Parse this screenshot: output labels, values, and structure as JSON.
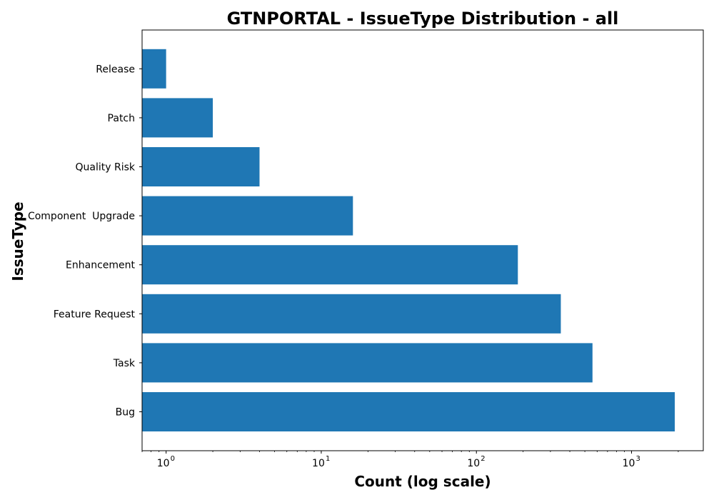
{
  "chart_data": {
    "type": "bar",
    "orientation": "horizontal",
    "title": "GTNPORTAL - IssueType Distribution - all",
    "xlabel": "Count (log scale)",
    "ylabel": "IssueType",
    "xscale": "log",
    "xlim": [
      0.7,
      2900
    ],
    "x_ticks": [
      1,
      10,
      100,
      1000
    ],
    "x_tick_labels": [
      {
        "base": "10",
        "exp": "0"
      },
      {
        "base": "10",
        "exp": "1"
      },
      {
        "base": "10",
        "exp": "2"
      },
      {
        "base": "10",
        "exp": "3"
      }
    ],
    "categories": [
      "Bug",
      "Task",
      "Feature Request",
      "Enhancement",
      "Component  Upgrade",
      "Quality Risk",
      "Patch",
      "Release"
    ],
    "values": [
      1900,
      560,
      350,
      185,
      16,
      4,
      2,
      1
    ],
    "bar_color": "#1f77b4",
    "grid": false,
    "legend": false
  }
}
